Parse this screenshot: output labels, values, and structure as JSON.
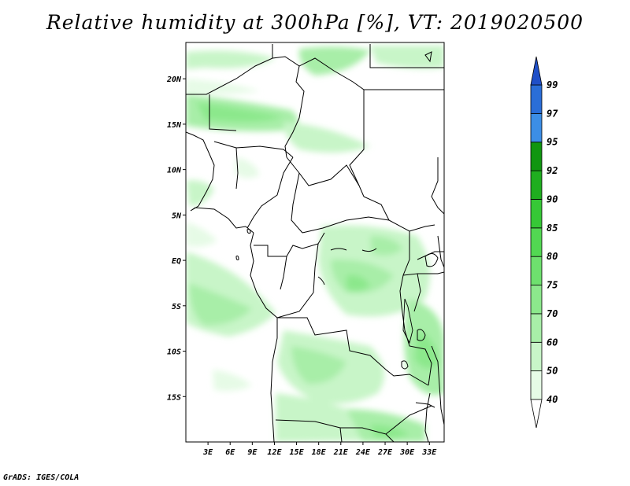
{
  "title": "Relative humidity at 300hPa [%], VT: 2019020500",
  "credit": "GrADS: IGES/COLA",
  "map": {
    "lon_range": [
      0,
      35
    ],
    "lat_range": [
      -20,
      24
    ],
    "lat_ticks": [
      {
        "value": 20,
        "label": "20N"
      },
      {
        "value": 15,
        "label": "15N"
      },
      {
        "value": 10,
        "label": "10N"
      },
      {
        "value": 5,
        "label": "5N"
      },
      {
        "value": 0,
        "label": "EQ"
      },
      {
        "value": -5,
        "label": "5S"
      },
      {
        "value": -10,
        "label": "10S"
      },
      {
        "value": -15,
        "label": "15S"
      }
    ],
    "lon_ticks": [
      {
        "value": 3,
        "label": "3E"
      },
      {
        "value": 6,
        "label": "6E"
      },
      {
        "value": 9,
        "label": "9E"
      },
      {
        "value": 12,
        "label": "12E"
      },
      {
        "value": 15,
        "label": "15E"
      },
      {
        "value": 18,
        "label": "18E"
      },
      {
        "value": 21,
        "label": "21E"
      },
      {
        "value": 24,
        "label": "24E"
      },
      {
        "value": 27,
        "label": "27E"
      },
      {
        "value": 30,
        "label": "30E"
      },
      {
        "value": 33,
        "label": "33E"
      }
    ]
  },
  "colorbar": {
    "levels": [
      "40",
      "50",
      "60",
      "70",
      "75",
      "80",
      "85",
      "90",
      "92",
      "95",
      "97",
      "99"
    ],
    "colors": [
      "#ffffff",
      "#e6fbe6",
      "#c8f5c8",
      "#a8eea8",
      "#8ce88c",
      "#6ee06e",
      "#52d852",
      "#36c836",
      "#1fae1f",
      "#109610",
      "#3c8ee6",
      "#2a6ed8",
      "#1f4fc8"
    ]
  }
}
